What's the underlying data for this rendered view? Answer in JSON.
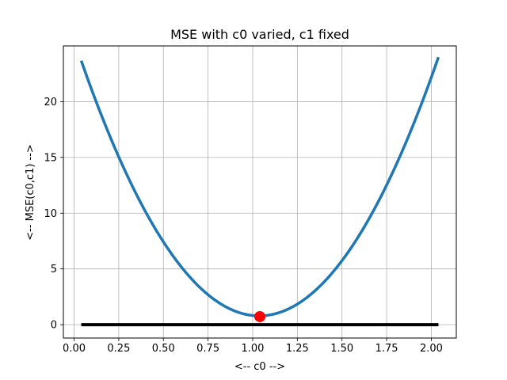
{
  "chart_data": {
    "type": "line",
    "title": "MSE with c0 varied, c1 fixed",
    "xlabel": "<-- c0 -->",
    "ylabel": "<-- MSE(c0,c1) -->",
    "xlim": [
      -0.06,
      2.14
    ],
    "ylim": [
      -1.2,
      25.0
    ],
    "xticks": [
      0.0,
      0.25,
      0.5,
      0.75,
      1.0,
      1.25,
      1.5,
      1.75,
      2.0
    ],
    "xtick_labels": [
      "0.00",
      "0.25",
      "0.50",
      "0.75",
      "1.00",
      "1.25",
      "1.50",
      "1.75",
      "2.00"
    ],
    "yticks": [
      0,
      5,
      10,
      15,
      20
    ],
    "ytick_labels": [
      "0",
      "5",
      "10",
      "15",
      "20"
    ],
    "grid": true,
    "series": [
      {
        "kind": "curve",
        "color": "#1f77b4",
        "x": [
          0.04,
          0.2,
          0.4,
          0.6,
          0.8,
          1.0,
          1.04,
          1.2,
          1.4,
          1.6,
          1.8,
          2.04
        ],
        "y": [
          23.8,
          16.9,
          10.0,
          5.2,
          2.1,
          0.75,
          0.72,
          1.3,
          3.9,
          8.3,
          14.5,
          23.7
        ]
      },
      {
        "kind": "baseline",
        "color": "#000000",
        "x": [
          0.04,
          2.04
        ],
        "y": [
          0,
          0
        ]
      }
    ],
    "highlight_point": {
      "x": 1.04,
      "y": 0.72,
      "color": "#ff0000"
    }
  }
}
